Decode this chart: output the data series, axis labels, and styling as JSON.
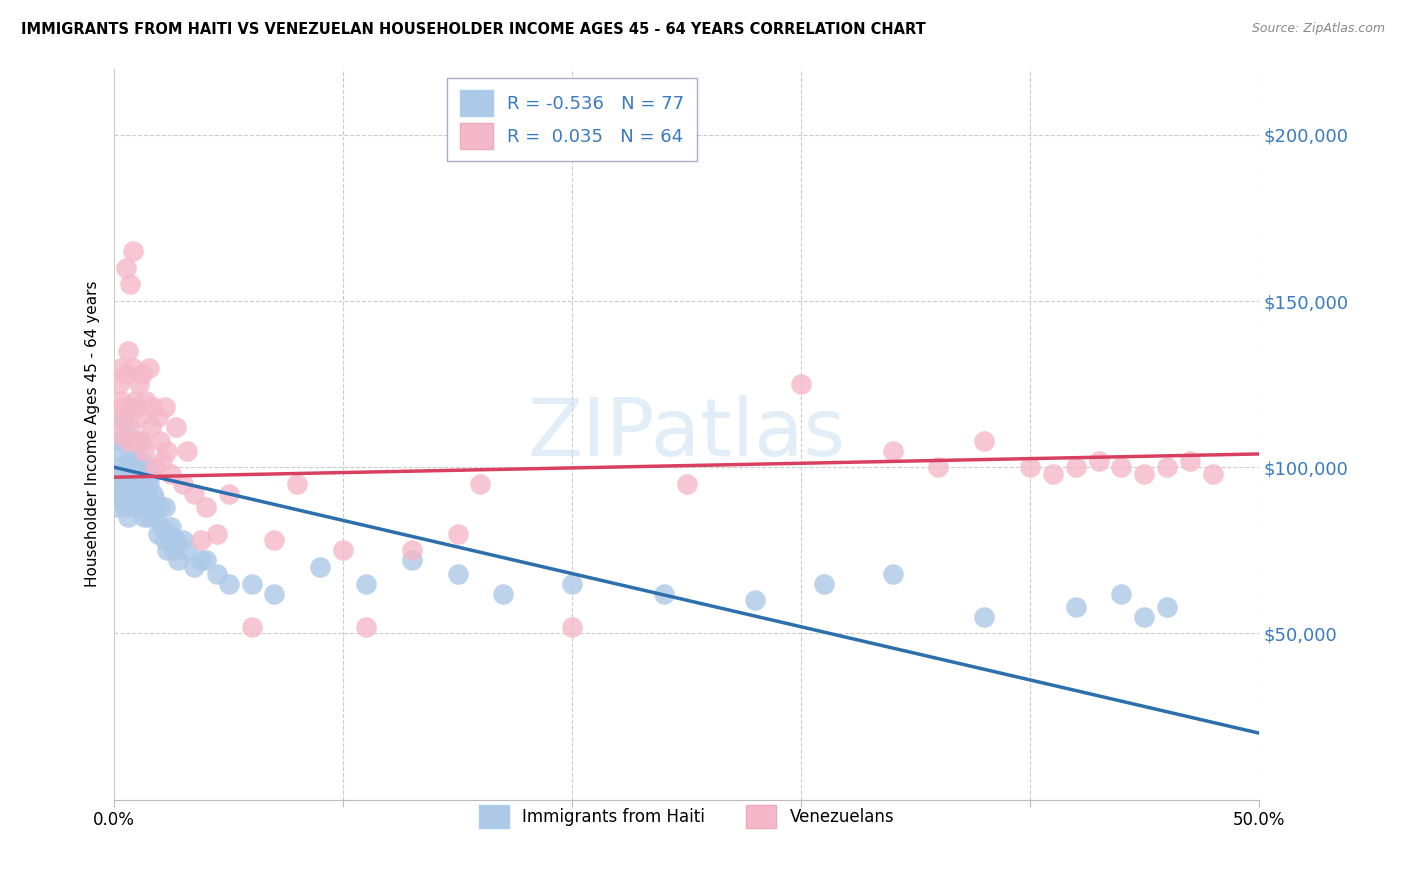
{
  "title": "IMMIGRANTS FROM HAITI VS VENEZUELAN HOUSEHOLDER INCOME AGES 45 - 64 YEARS CORRELATION CHART",
  "source": "Source: ZipAtlas.com",
  "ylabel": "Householder Income Ages 45 - 64 years",
  "xlim": [
    0.0,
    0.5
  ],
  "ylim": [
    0,
    220000
  ],
  "yticks": [
    0,
    50000,
    100000,
    150000,
    200000
  ],
  "ytick_labels_right": [
    "",
    "$50,000",
    "$100,000",
    "$150,000",
    "$200,000"
  ],
  "xticks": [
    0.0,
    0.1,
    0.2,
    0.3,
    0.4,
    0.5
  ],
  "xtick_labels": [
    "0.0%",
    "",
    "",
    "",
    "",
    "50.0%"
  ],
  "haiti_color": "#adc9e8",
  "venezuela_color": "#f5b8ca",
  "haiti_line_color": "#2c6fad",
  "venezuela_line_color": "#d94060",
  "tick_label_color": "#3a7abf",
  "haiti_R": -0.536,
  "haiti_N": 77,
  "venezuela_R": 0.035,
  "venezuela_N": 64,
  "watermark_zip": "ZIP",
  "watermark_atlas": "atlas",
  "legend_haiti": "Immigrants from Haiti",
  "legend_venezuela": "Venezuelans",
  "haiti_line_x0": 0.0,
  "haiti_line_y0": 100000,
  "haiti_line_x1": 0.5,
  "haiti_line_y1": 20000,
  "ven_line_x0": 0.0,
  "ven_line_y0": 97000,
  "ven_line_x1": 0.5,
  "ven_line_y1": 104000,
  "haiti_scatter_x": [
    0.001,
    0.001,
    0.002,
    0.002,
    0.002,
    0.003,
    0.003,
    0.003,
    0.004,
    0.004,
    0.005,
    0.005,
    0.005,
    0.006,
    0.006,
    0.006,
    0.007,
    0.007,
    0.007,
    0.008,
    0.008,
    0.008,
    0.009,
    0.009,
    0.009,
    0.01,
    0.01,
    0.011,
    0.011,
    0.012,
    0.012,
    0.013,
    0.013,
    0.014,
    0.014,
    0.015,
    0.015,
    0.016,
    0.016,
    0.017,
    0.018,
    0.018,
    0.019,
    0.02,
    0.021,
    0.022,
    0.022,
    0.023,
    0.024,
    0.025,
    0.026,
    0.027,
    0.028,
    0.03,
    0.032,
    0.035,
    0.038,
    0.04,
    0.045,
    0.05,
    0.06,
    0.07,
    0.09,
    0.11,
    0.13,
    0.15,
    0.17,
    0.2,
    0.24,
    0.28,
    0.31,
    0.34,
    0.38,
    0.42,
    0.44,
    0.45,
    0.46
  ],
  "haiti_scatter_y": [
    98000,
    88000,
    105000,
    95000,
    92000,
    100000,
    108000,
    90000,
    115000,
    95000,
    110000,
    98000,
    88000,
    102000,
    95000,
    85000,
    118000,
    100000,
    92000,
    108000,
    98000,
    90000,
    102000,
    95000,
    88000,
    100000,
    92000,
    108000,
    88000,
    95000,
    102000,
    90000,
    85000,
    100000,
    92000,
    95000,
    85000,
    98000,
    88000,
    92000,
    85000,
    90000,
    80000,
    88000,
    82000,
    78000,
    88000,
    75000,
    80000,
    82000,
    75000,
    78000,
    72000,
    78000,
    75000,
    70000,
    72000,
    72000,
    68000,
    65000,
    65000,
    62000,
    70000,
    65000,
    72000,
    68000,
    62000,
    65000,
    62000,
    60000,
    65000,
    68000,
    55000,
    58000,
    62000,
    55000,
    58000
  ],
  "venezuela_scatter_x": [
    0.001,
    0.002,
    0.002,
    0.003,
    0.003,
    0.004,
    0.005,
    0.005,
    0.006,
    0.006,
    0.007,
    0.007,
    0.008,
    0.008,
    0.009,
    0.009,
    0.01,
    0.011,
    0.011,
    0.012,
    0.012,
    0.013,
    0.014,
    0.015,
    0.016,
    0.017,
    0.018,
    0.019,
    0.02,
    0.021,
    0.022,
    0.023,
    0.025,
    0.027,
    0.03,
    0.032,
    0.035,
    0.038,
    0.04,
    0.045,
    0.05,
    0.06,
    0.07,
    0.08,
    0.1,
    0.11,
    0.13,
    0.15,
    0.16,
    0.2,
    0.25,
    0.3,
    0.34,
    0.36,
    0.38,
    0.4,
    0.41,
    0.42,
    0.43,
    0.44,
    0.45,
    0.46,
    0.47,
    0.48
  ],
  "venezuela_scatter_y": [
    110000,
    125000,
    115000,
    130000,
    120000,
    118000,
    160000,
    128000,
    135000,
    108000,
    155000,
    112000,
    165000,
    130000,
    120000,
    108000,
    118000,
    115000,
    125000,
    108000,
    128000,
    105000,
    120000,
    130000,
    112000,
    118000,
    100000,
    115000,
    108000,
    102000,
    118000,
    105000,
    98000,
    112000,
    95000,
    105000,
    92000,
    78000,
    88000,
    80000,
    92000,
    52000,
    78000,
    95000,
    75000,
    52000,
    75000,
    80000,
    95000,
    52000,
    95000,
    125000,
    105000,
    100000,
    108000,
    100000,
    98000,
    100000,
    102000,
    100000,
    98000,
    100000,
    102000,
    98000
  ]
}
